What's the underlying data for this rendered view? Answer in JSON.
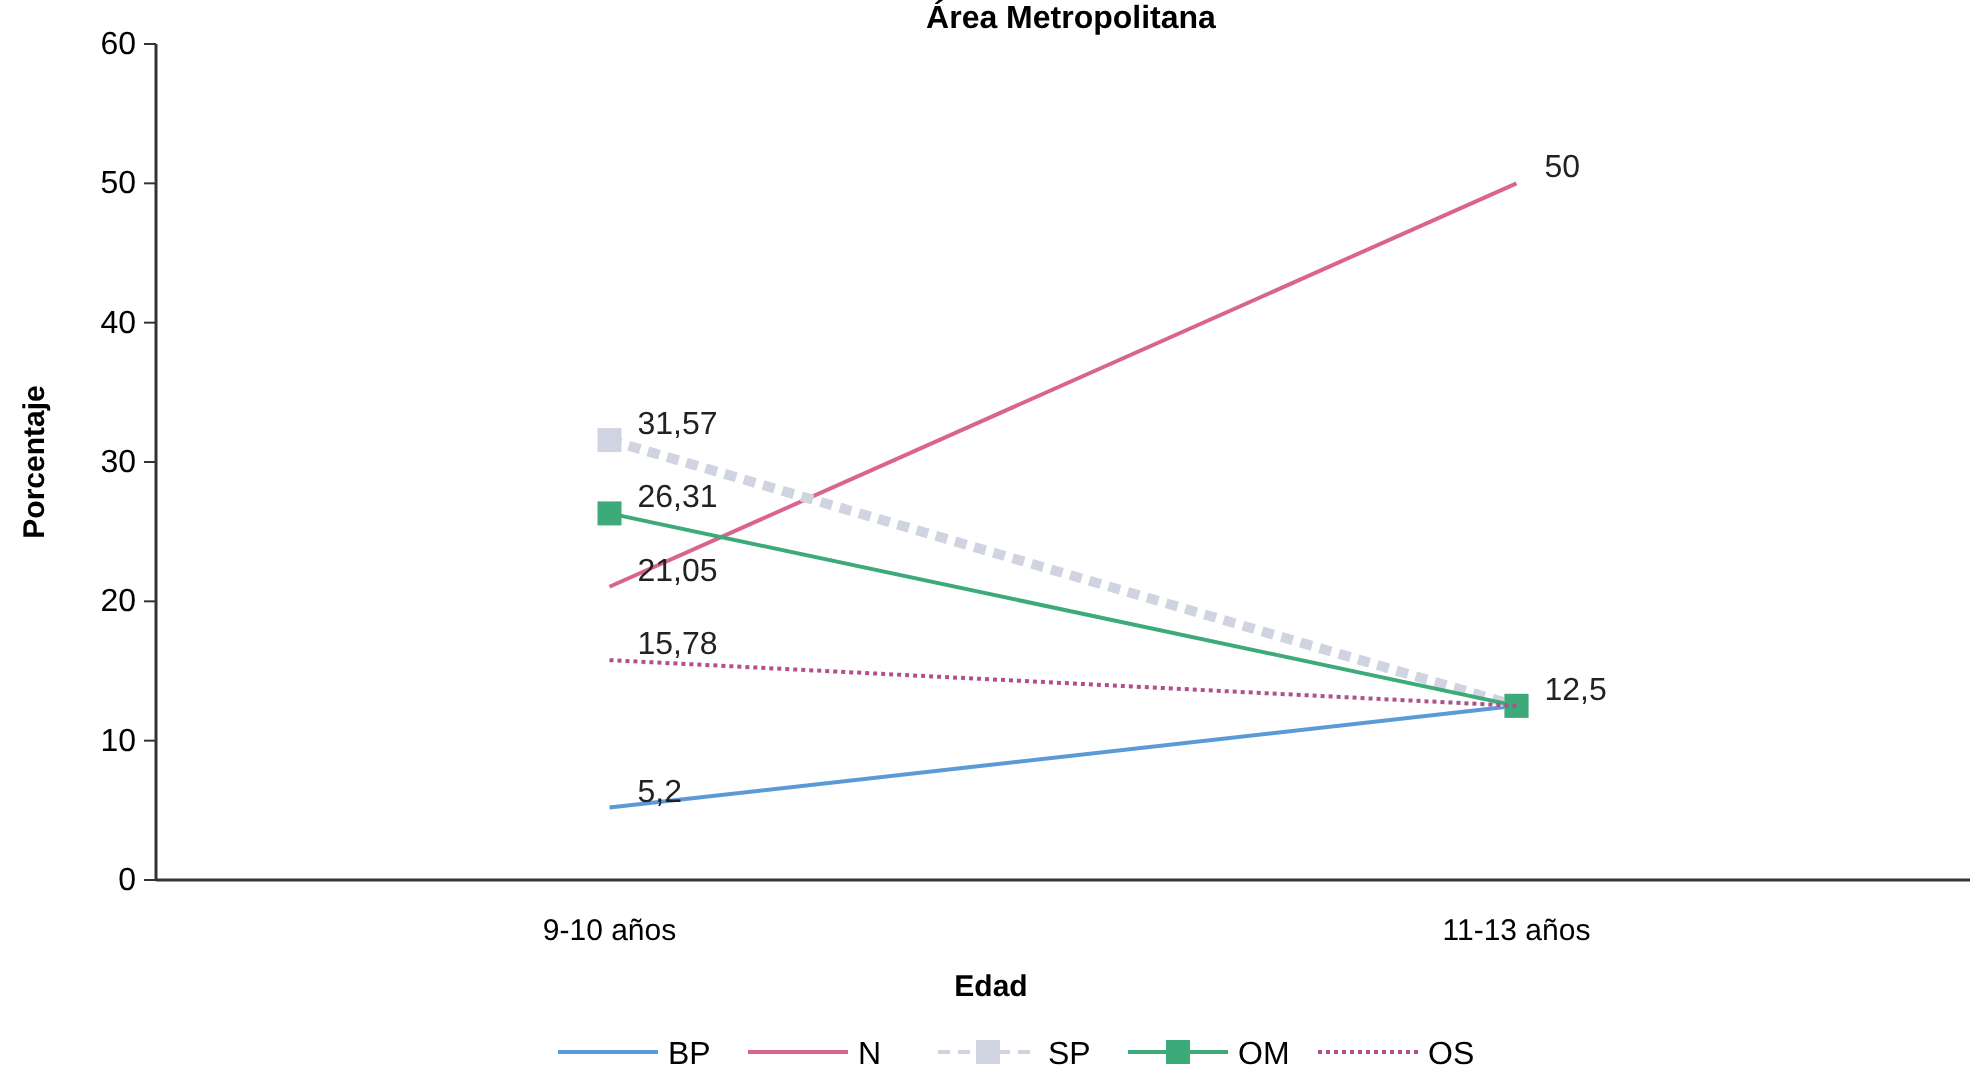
{
  "chart_data": {
    "type": "line",
    "title": "Área Metropolitana",
    "xlabel": "Edad",
    "ylabel": "Porcentaje",
    "categories": [
      "9-10 años",
      "11-13 años"
    ],
    "ylim": [
      0,
      60
    ],
    "yticks": [
      0,
      10,
      20,
      30,
      40,
      50,
      60
    ],
    "grid": false,
    "legend": "bottom",
    "series": [
      {
        "name": "BP",
        "color": "#5b9bd5",
        "values": [
          5.2,
          12.5
        ],
        "value_labels": [
          "5,2",
          null
        ],
        "line_style": "solid",
        "marker": "none"
      },
      {
        "name": "N",
        "color": "#d9658f",
        "values": [
          21.05,
          50
        ],
        "value_labels": [
          "21,05",
          "50"
        ],
        "line_style": "solid",
        "marker": "none"
      },
      {
        "name": "SP",
        "color": "#d0d4e0",
        "values": [
          31.57,
          12.5
        ],
        "value_labels": [
          "31,57",
          null
        ],
        "line_style": "dashed",
        "marker": "square"
      },
      {
        "name": "OM",
        "color": "#3daa7a",
        "values": [
          26.31,
          12.5
        ],
        "value_labels": [
          "26,31",
          "12,5"
        ],
        "line_style": "solid",
        "marker": "square"
      },
      {
        "name": "OS",
        "color": "#b0508a",
        "values": [
          15.78,
          12.5
        ],
        "value_labels": [
          "15,78",
          null
        ],
        "line_style": "dotted",
        "marker": "none"
      }
    ]
  }
}
